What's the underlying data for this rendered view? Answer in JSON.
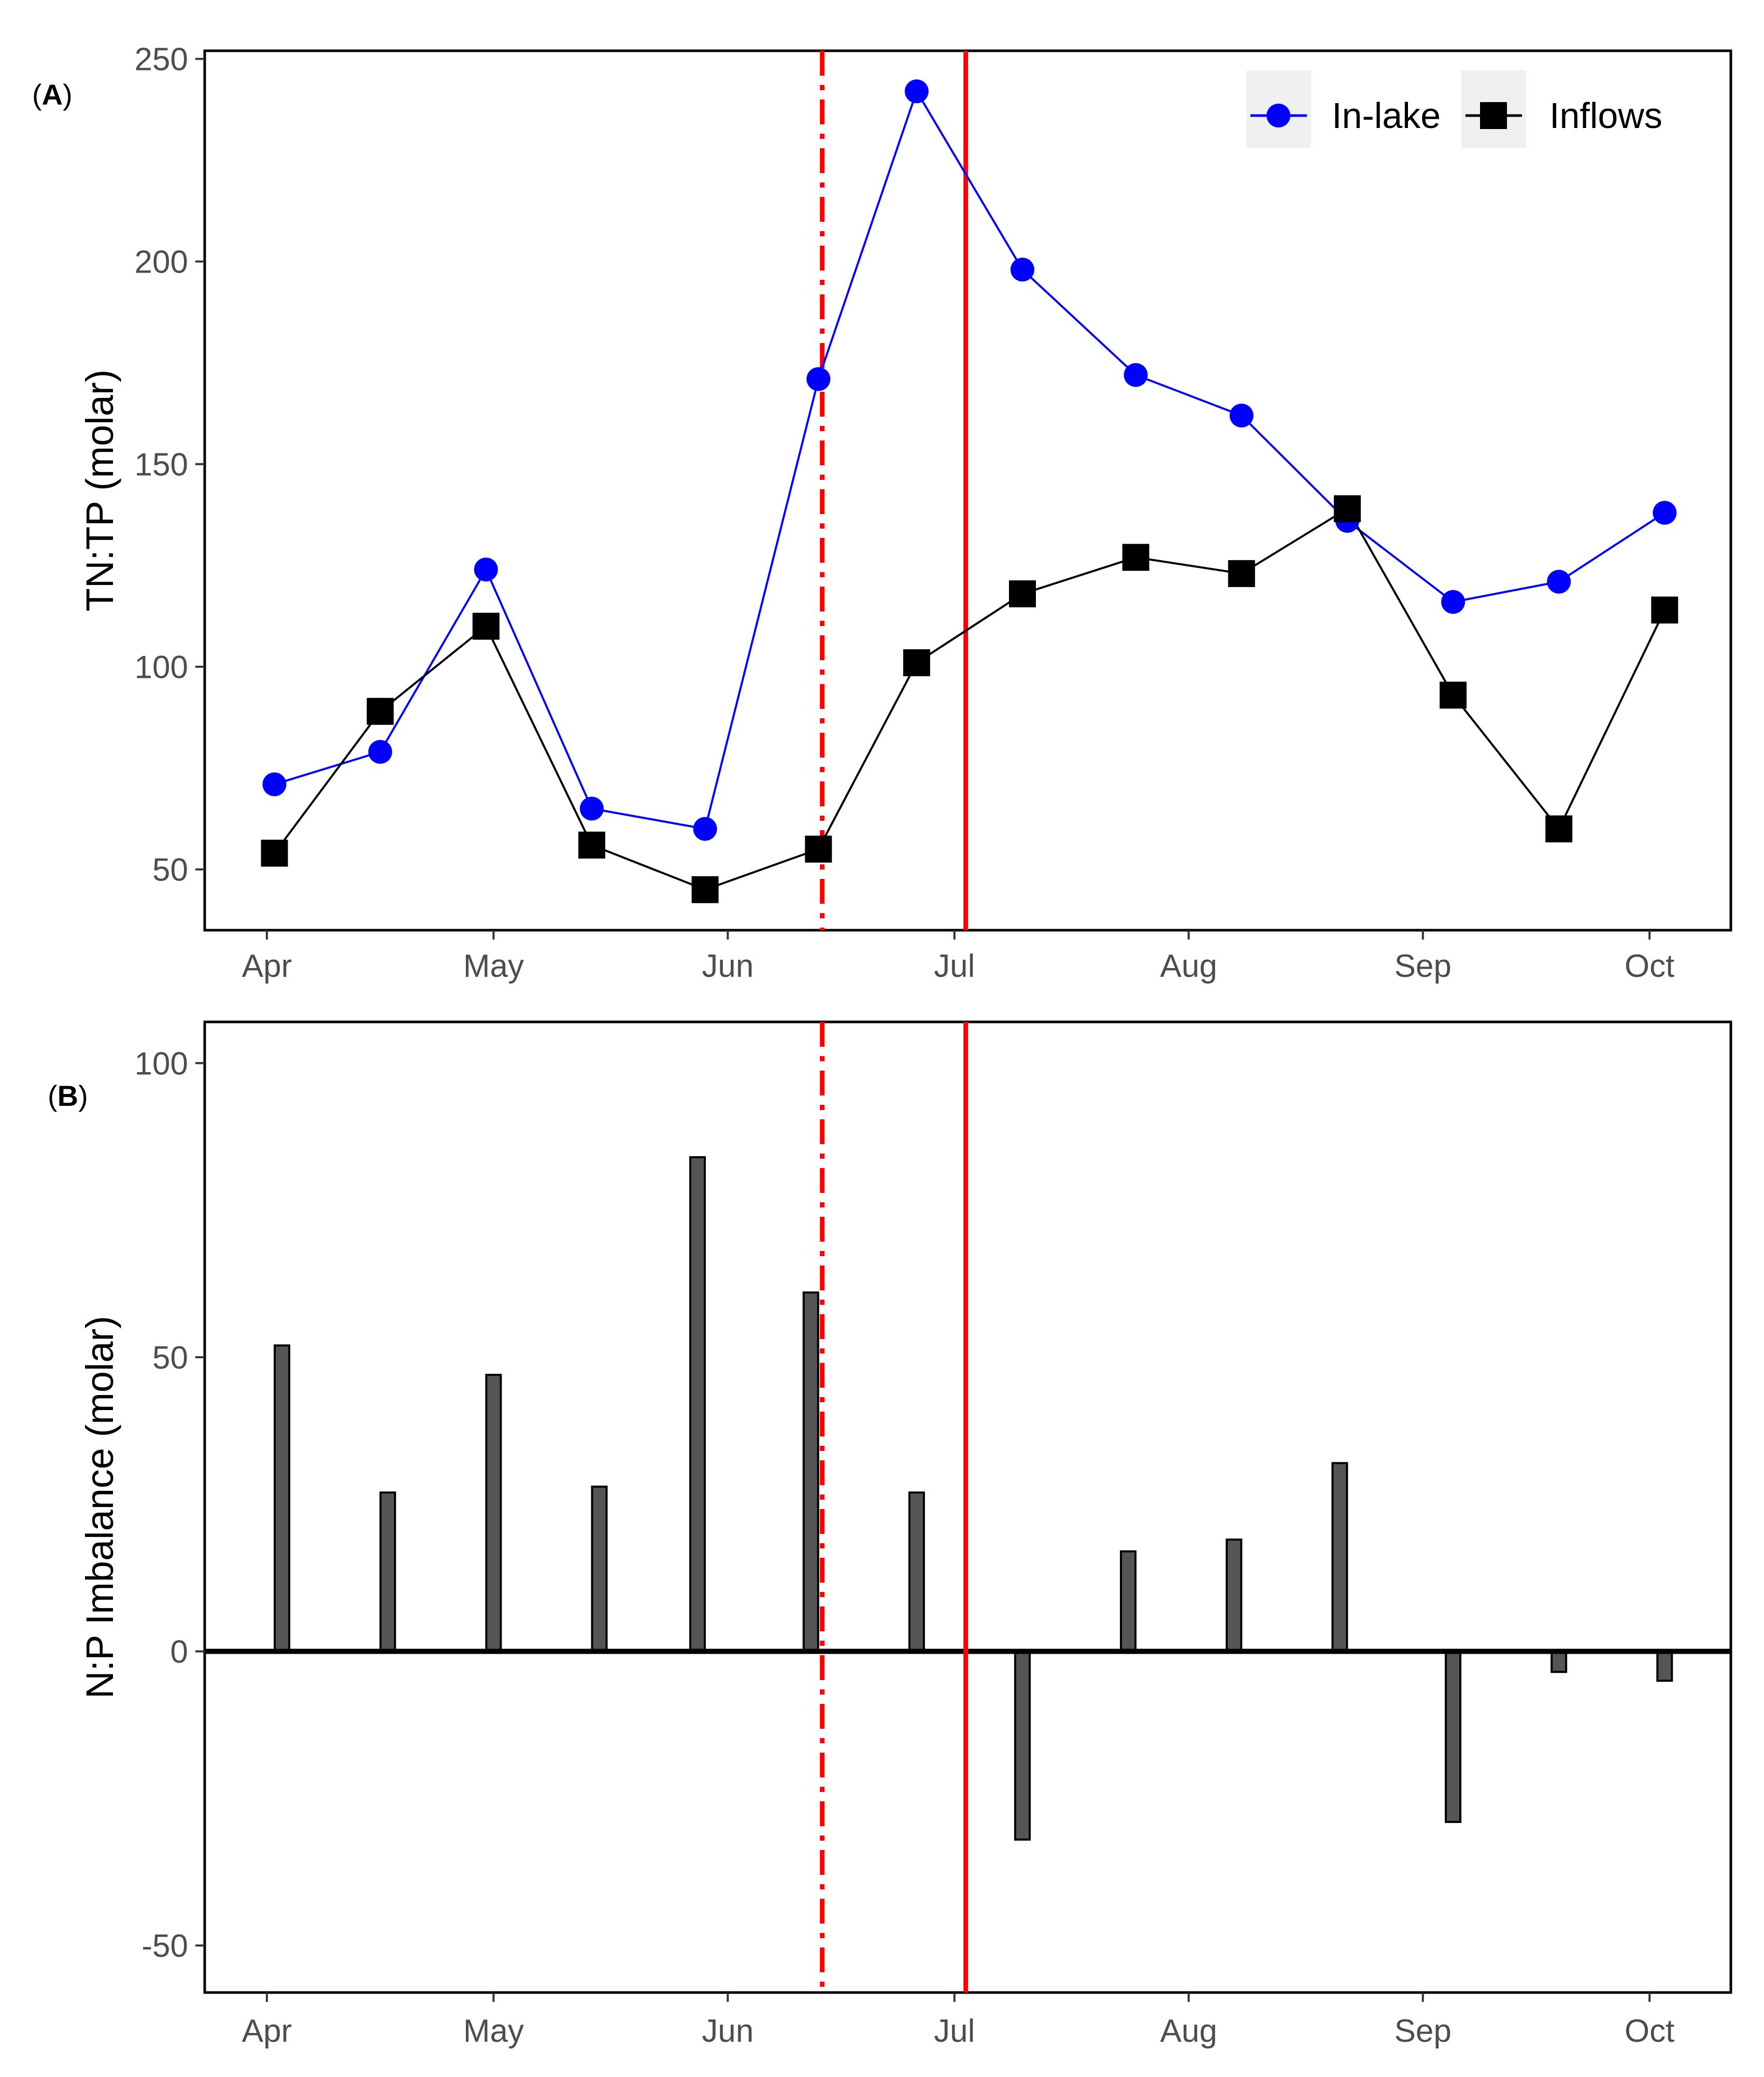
{
  "figure": {
    "panel_a_label": "A",
    "panel_b_label": "B"
  },
  "chart_data": [
    {
      "type": "line",
      "panel": "A",
      "ylabel": "TN:TP (molar)",
      "xlabel": "",
      "ylim": [
        35,
        252
      ],
      "yticks": [
        50,
        100,
        150,
        200,
        250
      ],
      "x_month_ticks": [
        {
          "label": "Apr",
          "day": 0
        },
        {
          "label": "May",
          "day": 30
        },
        {
          "label": "Jun",
          "day": 61
        },
        {
          "label": "Jul",
          "day": 91
        },
        {
          "label": "Aug",
          "day": 122
        },
        {
          "label": "Sep",
          "day": 153
        },
        {
          "label": "Oct",
          "day": 183
        }
      ],
      "x_days": [
        1,
        15,
        29,
        43,
        58,
        73,
        86,
        100,
        115,
        129,
        143,
        157,
        171,
        185
      ],
      "series": [
        {
          "name": "In-lake",
          "marker": "circle",
          "color": "#0000ff",
          "values": [
            71,
            79,
            124,
            65,
            60,
            171,
            242,
            198,
            172,
            162,
            136,
            116,
            121,
            138
          ]
        },
        {
          "name": "Inflows",
          "marker": "square",
          "color": "#000000",
          "values": [
            54,
            89,
            110,
            56,
            45,
            55,
            101,
            118,
            127,
            123,
            139,
            93,
            60,
            114
          ]
        }
      ],
      "vlines": [
        {
          "day": 73.5,
          "style": "dashdot",
          "color": "#ff0000"
        },
        {
          "day": 92.5,
          "style": "solid",
          "color": "#ff0000"
        }
      ],
      "legend_position": "top-right",
      "grid": false
    },
    {
      "type": "bar",
      "panel": "B",
      "ylabel": "N:P Imbalance (molar)",
      "xlabel": "",
      "ylim": [
        -58,
        107
      ],
      "yticks": [
        -50,
        0,
        50,
        100
      ],
      "x_month_ticks": [
        {
          "label": "Apr",
          "day": 0
        },
        {
          "label": "May",
          "day": 30
        },
        {
          "label": "Jun",
          "day": 61
        },
        {
          "label": "Jul",
          "day": 91
        },
        {
          "label": "Aug",
          "day": 122
        },
        {
          "label": "Sep",
          "day": 153
        },
        {
          "label": "Oct",
          "day": 183
        }
      ],
      "x_days": [
        2,
        16,
        30,
        44,
        57,
        72,
        86,
        100,
        114,
        128,
        142,
        157,
        171,
        185
      ],
      "values": [
        52,
        27,
        47,
        28,
        84,
        61,
        27,
        -32,
        17,
        19,
        32,
        -29,
        -3.5,
        -5
      ],
      "bar_color": "#555555",
      "vlines": [
        {
          "day": 73.5,
          "style": "dashdot",
          "color": "#ff0000"
        },
        {
          "day": 92.5,
          "style": "solid",
          "color": "#ff0000"
        }
      ],
      "zero_line": true,
      "grid": false
    }
  ]
}
